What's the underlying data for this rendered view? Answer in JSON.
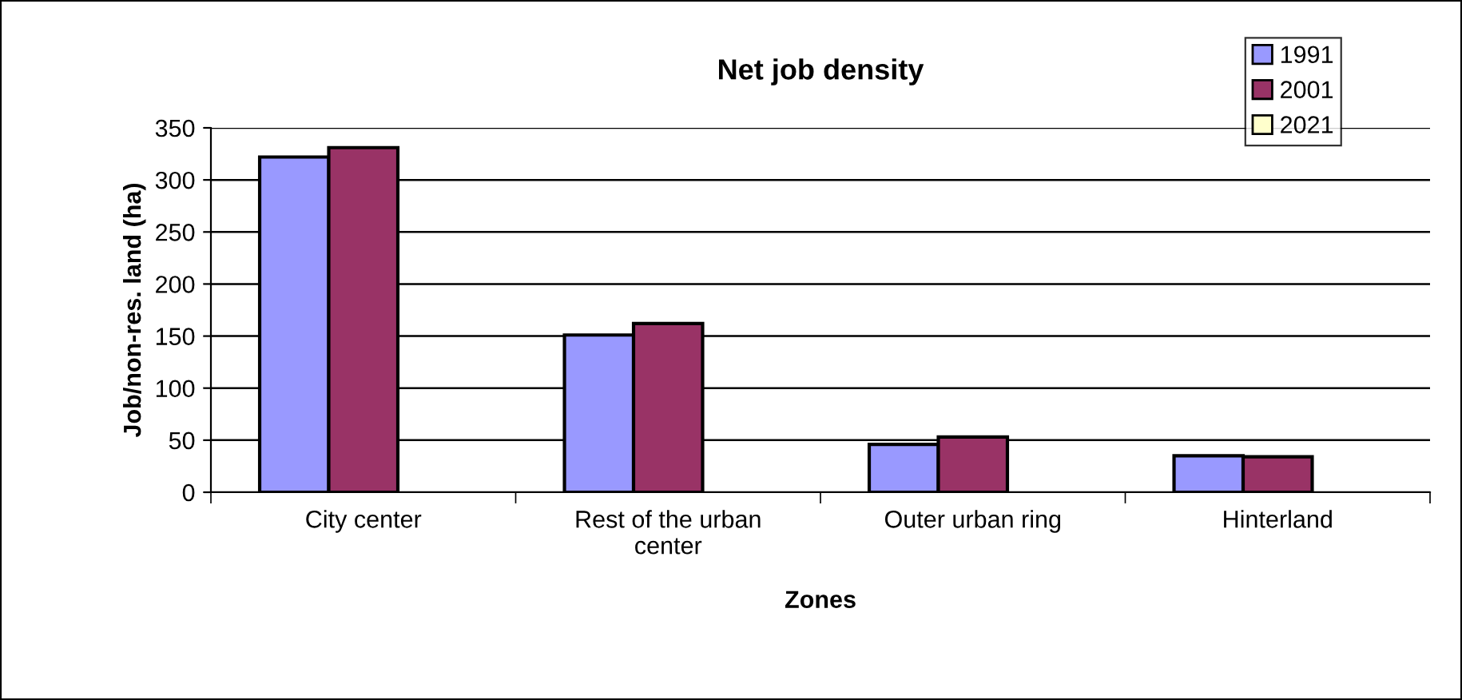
{
  "chart_data": {
    "type": "bar",
    "title": "Net job density",
    "xlabel": "Zones",
    "ylabel": "Job/non-res. land (ha)",
    "categories": [
      "City center",
      "Rest of the urban\ncenter",
      "Outer urban ring",
      "Hinterland"
    ],
    "series": [
      {
        "name": "1991",
        "color": "#9999ff",
        "values": [
          322,
          151,
          46,
          35
        ]
      },
      {
        "name": "2001",
        "color": "#993366",
        "values": [
          331,
          162,
          53,
          34
        ]
      },
      {
        "name": "2021",
        "color": "#ffffcc",
        "values": [
          null,
          null,
          null,
          null
        ]
      }
    ],
    "ylim": [
      0,
      350
    ],
    "yticks": [
      0,
      50,
      100,
      150,
      200,
      250,
      300,
      350
    ],
    "grid": "y",
    "legend": "top right"
  }
}
